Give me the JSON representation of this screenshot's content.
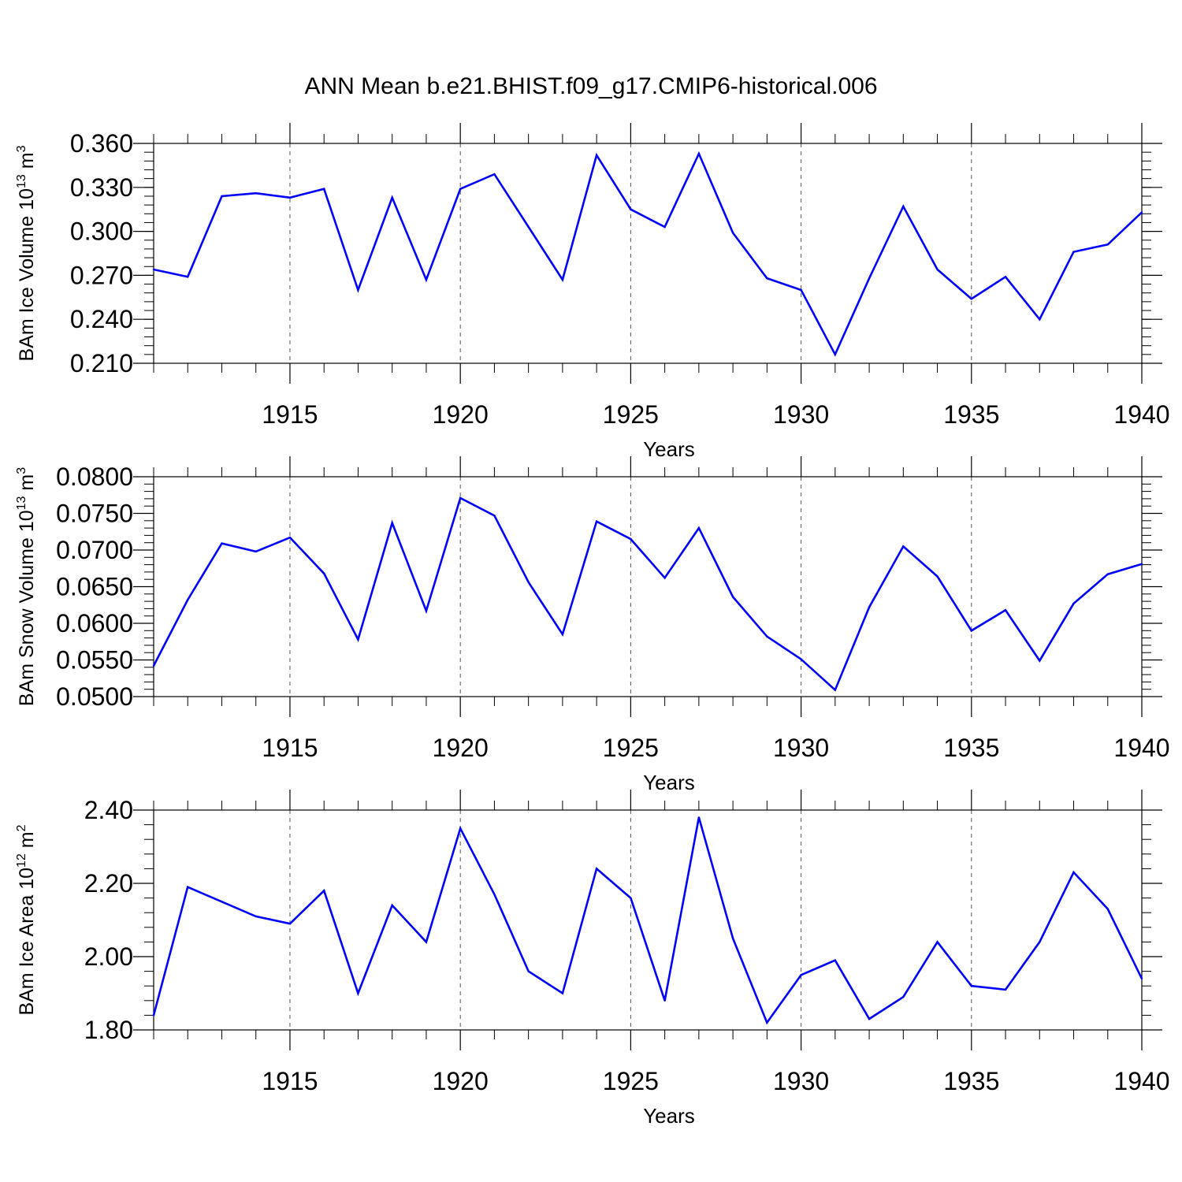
{
  "figure": {
    "title": "ANN Mean b.e21.BHIST.f09_g17.CMIP6-historical.006"
  },
  "chart_data": [
    {
      "type": "line",
      "ylabel": "BAm Ice Volume 10",
      "ylabel_sup": "13",
      "ylabel_unit": " m",
      "ylabel_unit_sup": "3",
      "xlabel": "Years",
      "xlim": [
        1911,
        1940
      ],
      "ylim": [
        0.21,
        0.36
      ],
      "yticks": [
        0.21,
        0.24,
        0.27,
        0.3,
        0.33,
        0.36
      ],
      "ytick_labels": [
        "0.210",
        "0.240",
        "0.270",
        "0.300",
        "0.330",
        "0.360"
      ],
      "yminor_step": 0.006,
      "xticks": [
        1915,
        1920,
        1925,
        1930,
        1935,
        1940
      ],
      "xtick_labels": [
        "1915",
        "1920",
        "1925",
        "1930",
        "1935",
        "1940"
      ],
      "grid": "vertical dashed at major x ticks",
      "series": [
        {
          "name": "BAm Ice Volume",
          "color": "#0000ff",
          "x": [
            1911,
            1912,
            1913,
            1914,
            1915,
            1916,
            1917,
            1918,
            1919,
            1920,
            1921,
            1922,
            1923,
            1924,
            1925,
            1926,
            1927,
            1928,
            1929,
            1930,
            1931,
            1932,
            1933,
            1934,
            1935,
            1936,
            1937,
            1938,
            1939,
            1940
          ],
          "values": [
            0.274,
            0.269,
            0.324,
            0.326,
            0.323,
            0.329,
            0.26,
            0.323,
            0.267,
            0.329,
            0.339,
            0.303,
            0.267,
            0.352,
            0.315,
            0.303,
            0.353,
            0.299,
            0.268,
            0.26,
            0.216,
            0.268,
            0.317,
            0.274,
            0.254,
            0.269,
            0.24,
            0.286,
            0.291,
            0.313
          ]
        }
      ]
    },
    {
      "type": "line",
      "ylabel": "BAm Snow Volume 10",
      "ylabel_sup": "13",
      "ylabel_unit": " m",
      "ylabel_unit_sup": "3",
      "xlabel": "Years",
      "xlim": [
        1911,
        1940
      ],
      "ylim": [
        0.05,
        0.08
      ],
      "yticks": [
        0.05,
        0.055,
        0.06,
        0.065,
        0.07,
        0.075,
        0.08
      ],
      "ytick_labels": [
        "0.0500",
        "0.0550",
        "0.0600",
        "0.0650",
        "0.0700",
        "0.0750",
        "0.0800"
      ],
      "yminor_step": 0.001,
      "xticks": [
        1915,
        1920,
        1925,
        1930,
        1935,
        1940
      ],
      "xtick_labels": [
        "1915",
        "1920",
        "1925",
        "1930",
        "1935",
        "1940"
      ],
      "grid": "vertical dashed at major x ticks",
      "series": [
        {
          "name": "BAm Snow Volume",
          "color": "#0000ff",
          "x": [
            1911,
            1912,
            1913,
            1914,
            1915,
            1916,
            1917,
            1918,
            1919,
            1920,
            1921,
            1922,
            1923,
            1924,
            1925,
            1926,
            1927,
            1928,
            1929,
            1930,
            1931,
            1932,
            1933,
            1934,
            1935,
            1936,
            1937,
            1938,
            1939,
            1940
          ],
          "values": [
            0.0542,
            0.0632,
            0.0709,
            0.0698,
            0.0717,
            0.0668,
            0.0578,
            0.0737,
            0.0617,
            0.0771,
            0.0747,
            0.0656,
            0.0585,
            0.0739,
            0.0715,
            0.0662,
            0.073,
            0.0636,
            0.0582,
            0.0551,
            0.0509,
            0.0622,
            0.0705,
            0.0664,
            0.059,
            0.0618,
            0.0549,
            0.0627,
            0.0667,
            0.0681
          ]
        }
      ]
    },
    {
      "type": "line",
      "ylabel": "BAm Ice Area 10",
      "ylabel_sup": "12",
      "ylabel_unit": " m",
      "ylabel_unit_sup": "2",
      "xlabel": "Years",
      "xlim": [
        1911,
        1940
      ],
      "ylim": [
        1.8,
        2.4
      ],
      "yticks": [
        1.8,
        2.0,
        2.2,
        2.4
      ],
      "ytick_labels": [
        "1.80",
        "2.00",
        "2.20",
        "2.40"
      ],
      "yminor_step": 0.04,
      "xticks": [
        1915,
        1920,
        1925,
        1930,
        1935,
        1940
      ],
      "xtick_labels": [
        "1915",
        "1920",
        "1925",
        "1930",
        "1935",
        "1940"
      ],
      "grid": "vertical dashed at major x ticks",
      "series": [
        {
          "name": "BAm Ice Area",
          "color": "#0000ff",
          "x": [
            1911,
            1912,
            1913,
            1914,
            1915,
            1916,
            1917,
            1918,
            1919,
            1920,
            1921,
            1922,
            1923,
            1924,
            1925,
            1926,
            1927,
            1928,
            1929,
            1930,
            1931,
            1932,
            1933,
            1934,
            1935,
            1936,
            1937,
            1938,
            1939,
            1940
          ],
          "values": [
            1.84,
            2.19,
            2.15,
            2.11,
            2.09,
            2.18,
            1.9,
            2.14,
            2.04,
            2.35,
            2.17,
            1.96,
            1.9,
            2.24,
            2.16,
            1.88,
            2.38,
            2.05,
            1.82,
            1.95,
            1.99,
            1.83,
            1.89,
            2.04,
            1.92,
            1.91,
            2.04,
            2.23,
            2.13,
            1.94
          ]
        }
      ]
    }
  ]
}
